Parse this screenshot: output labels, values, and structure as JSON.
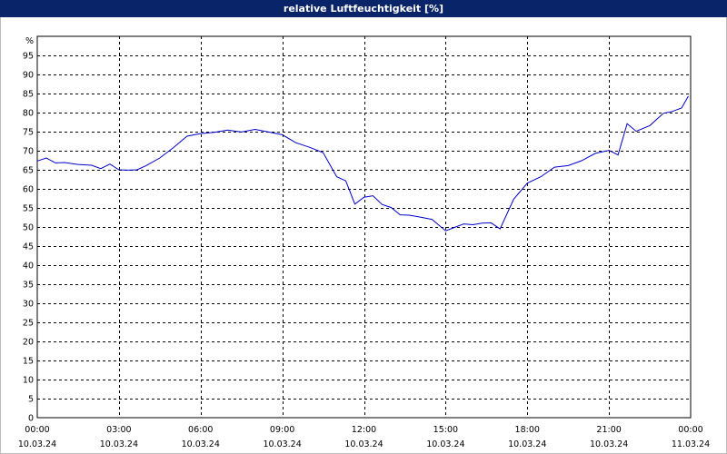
{
  "window": {
    "title": "relative Luftfeuchtigkeit [%]"
  },
  "colors": {
    "titlebar_bg": "#0a246a",
    "titlebar_text": "#ffffff",
    "line": "#0000cc",
    "grid": "#000000"
  },
  "chart_data": {
    "type": "line",
    "title": "relative Luftfeuchtigkeit [%]",
    "ylabel": "%",
    "xlabel": "",
    "ylim": [
      0,
      100
    ],
    "y_ticks": [
      0,
      5,
      10,
      15,
      20,
      25,
      30,
      35,
      40,
      45,
      50,
      55,
      60,
      65,
      70,
      75,
      80,
      85,
      90,
      95
    ],
    "x_ticks": [
      {
        "time": "00:00",
        "date": "10.03.24"
      },
      {
        "time": "03:00",
        "date": "10.03.24"
      },
      {
        "time": "06:00",
        "date": "10.03.24"
      },
      {
        "time": "09:00",
        "date": "10.03.24"
      },
      {
        "time": "12:00",
        "date": "10.03.24"
      },
      {
        "time": "15:00",
        "date": "10.03.24"
      },
      {
        "time": "18:00",
        "date": "10.03.24"
      },
      {
        "time": "21:00",
        "date": "10.03.24"
      },
      {
        "time": "00:00",
        "date": "11.03.24"
      }
    ],
    "grid": true,
    "grid_style": "dashed",
    "series": [
      {
        "x": [
          "10.03.24 00:00",
          "10.03.24 00:20",
          "10.03.24 00:40",
          "10.03.24 01:00",
          "10.03.24 01:30",
          "10.03.24 02:00",
          "10.03.24 02:20",
          "10.03.24 02:40",
          "10.03.24 03:00",
          "10.03.24 03:20",
          "10.03.24 03:40",
          "10.03.24 04:00",
          "10.03.24 04:30",
          "10.03.24 05:00",
          "10.03.24 05:30",
          "10.03.24 06:00",
          "10.03.24 06:30",
          "10.03.24 07:00",
          "10.03.24 07:30",
          "10.03.24 08:00",
          "10.03.24 08:30",
          "10.03.24 09:00",
          "10.03.24 09:30",
          "10.03.24 10:00",
          "10.03.24 10:30",
          "10.03.24 11:00",
          "10.03.24 11:20",
          "10.03.24 11:40",
          "10.03.24 12:00",
          "10.03.24 12:20",
          "10.03.24 12:40",
          "10.03.24 13:00",
          "10.03.24 13:20",
          "10.03.24 13:40",
          "10.03.24 14:00",
          "10.03.24 14:30",
          "10.03.24 15:00",
          "10.03.24 15:20",
          "10.03.24 15:40",
          "10.03.24 16:00",
          "10.03.24 16:20",
          "10.03.24 16:40",
          "10.03.24 17:00",
          "10.03.24 17:30",
          "10.03.24 18:00",
          "10.03.24 18:30",
          "10.03.24 19:00",
          "10.03.24 19:30",
          "10.03.24 20:00",
          "10.03.24 20:30",
          "10.03.24 21:00",
          "10.03.24 21:20",
          "10.03.24 21:40",
          "10.03.24 22:00",
          "10.03.24 22:30",
          "10.03.24 23:00",
          "10.03.24 23:20",
          "10.03.24 23:40",
          "10.03.24 23:55"
        ],
        "values": [
          67.3,
          68.1,
          66.8,
          66.9,
          66.4,
          66.2,
          65.3,
          66.5,
          65.0,
          64.9,
          65.0,
          66.1,
          68.1,
          70.8,
          73.8,
          74.5,
          74.8,
          75.4,
          74.9,
          75.6,
          74.9,
          74.2,
          72.1,
          70.9,
          69.5,
          63.2,
          62.1,
          56.0,
          57.8,
          58.2,
          55.9,
          55.1,
          53.2,
          53.1,
          52.7,
          52.0,
          49.0,
          49.9,
          50.8,
          50.6,
          51.0,
          51.1,
          49.5,
          57.3,
          61.5,
          63.2,
          65.7,
          66.1,
          67.4,
          69.3,
          70.1,
          68.9,
          77.1,
          75.1,
          76.6,
          79.8,
          80.3,
          81.2,
          84.3
        ]
      }
    ]
  }
}
